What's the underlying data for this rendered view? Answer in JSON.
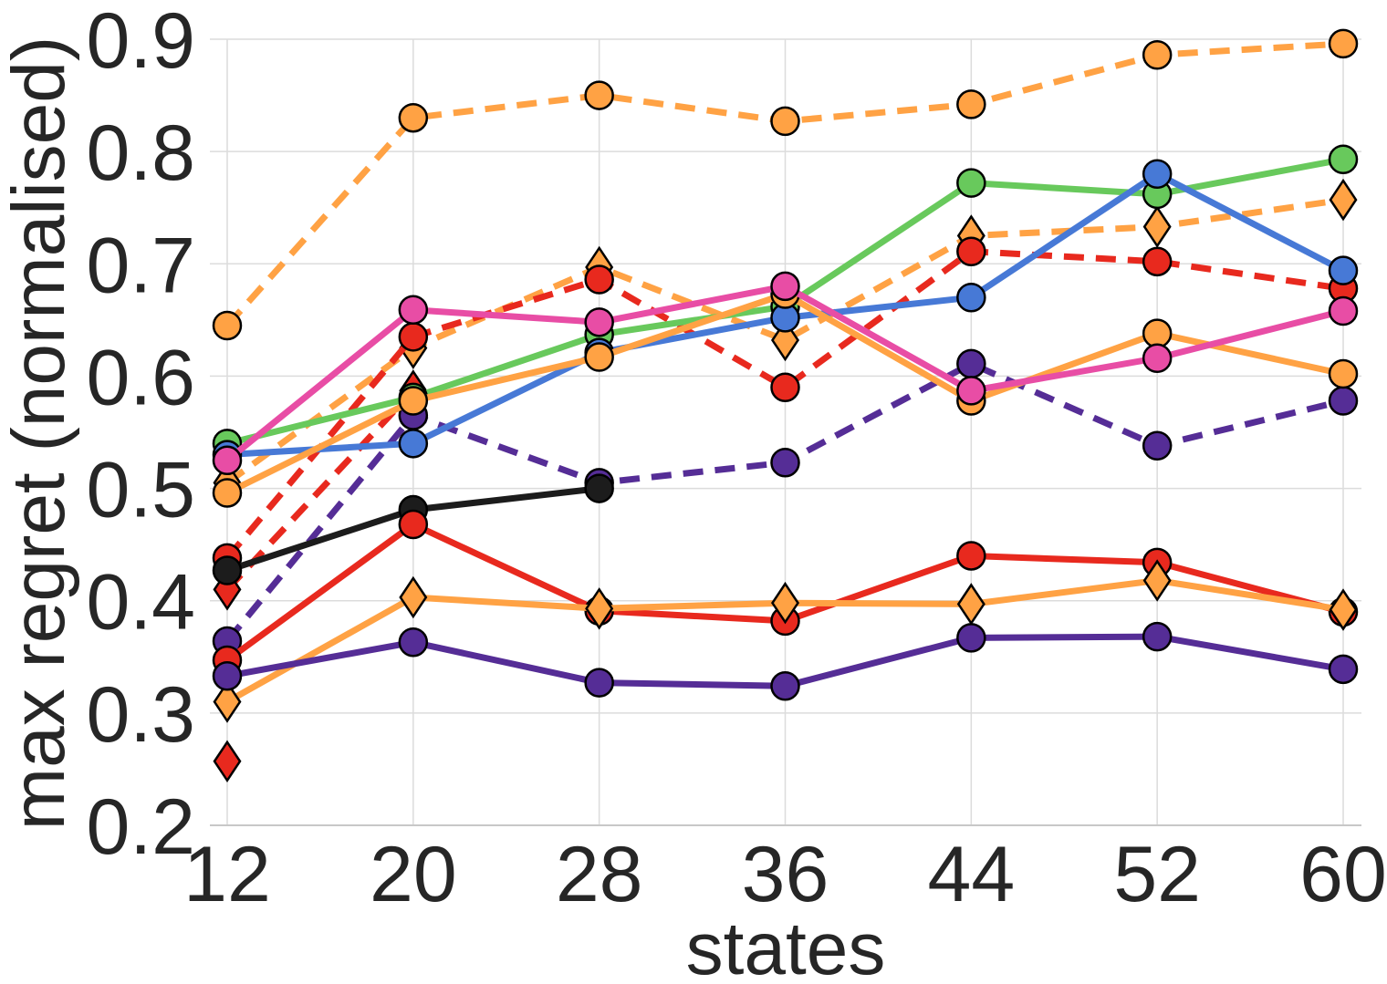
{
  "chart_data": {
    "type": "line",
    "xlabel": "states",
    "ylabel": "max regret (normalised)",
    "x": [
      12,
      20,
      28,
      36,
      44,
      52,
      60
    ],
    "x_ticks": [
      "12",
      "20",
      "28",
      "36",
      "44",
      "52",
      "60"
    ],
    "y_ticks": [
      "0.2",
      "0.3",
      "0.4",
      "0.5",
      "0.6",
      "0.7",
      "0.8",
      "0.9"
    ],
    "ylim": [
      0.2,
      0.9
    ],
    "grid": true,
    "legend": "none",
    "series": [
      {
        "color": "#ffa244",
        "dash": true,
        "marker": "circle",
        "values": [
          0.645,
          0.83,
          0.85,
          0.827,
          0.842,
          0.886,
          0.896
        ]
      },
      {
        "color": "#ffa244",
        "dash": true,
        "marker": "diamond",
        "values": [
          0.505,
          0.625,
          0.697,
          0.632,
          0.725,
          0.733,
          0.757
        ]
      },
      {
        "color": "#e8291e",
        "dash": true,
        "marker": "circle",
        "values": [
          0.438,
          0.635,
          0.686,
          0.59,
          0.711,
          0.702,
          0.678
        ]
      },
      {
        "color": "#e8291e",
        "dash": true,
        "marker": "diamond",
        "values": [
          0.41,
          0.587,
          null,
          null,
          null,
          null,
          null
        ]
      },
      {
        "color": "#552d96",
        "dash": true,
        "marker": "circle",
        "values": [
          0.364,
          0.565,
          0.505,
          0.523,
          0.611,
          0.538,
          0.578
        ]
      },
      {
        "color": "#68c95c",
        "dash": false,
        "marker": "circle",
        "values": [
          0.54,
          0.581,
          0.637,
          0.662,
          0.772,
          0.762,
          0.793
        ]
      },
      {
        "color": "#4779d6",
        "dash": false,
        "marker": "circle",
        "values": [
          0.53,
          0.54,
          0.621,
          0.652,
          0.67,
          0.78,
          0.694
        ]
      },
      {
        "color": "#ffa244",
        "dash": false,
        "marker": "circle",
        "values": [
          0.496,
          0.578,
          0.617,
          0.673,
          0.578,
          0.638,
          0.602
        ]
      },
      {
        "color": "#e84da5",
        "dash": false,
        "marker": "circle",
        "values": [
          0.525,
          0.659,
          0.648,
          0.68,
          0.587,
          0.616,
          0.658
        ]
      },
      {
        "color": "#1c1c1c",
        "dash": false,
        "marker": "circle",
        "values": [
          0.427,
          0.481,
          0.5,
          null,
          null,
          null,
          null
        ]
      },
      {
        "color": "#e8291e",
        "dash": false,
        "marker": "circle",
        "values": [
          0.347,
          0.468,
          0.391,
          0.382,
          0.44,
          0.434,
          0.39
        ]
      },
      {
        "color": "#ffa244",
        "dash": false,
        "marker": "diamond",
        "values": [
          0.31,
          0.403,
          0.393,
          0.398,
          0.397,
          0.418,
          0.392
        ]
      },
      {
        "color": "#552d96",
        "dash": false,
        "marker": "circle",
        "values": [
          0.333,
          0.363,
          0.327,
          0.324,
          0.367,
          0.368,
          0.339
        ]
      },
      {
        "color": "#e8291e",
        "dash": false,
        "marker": "diamond",
        "values": [
          0.257,
          null,
          null,
          null,
          null,
          null,
          null
        ]
      }
    ]
  }
}
